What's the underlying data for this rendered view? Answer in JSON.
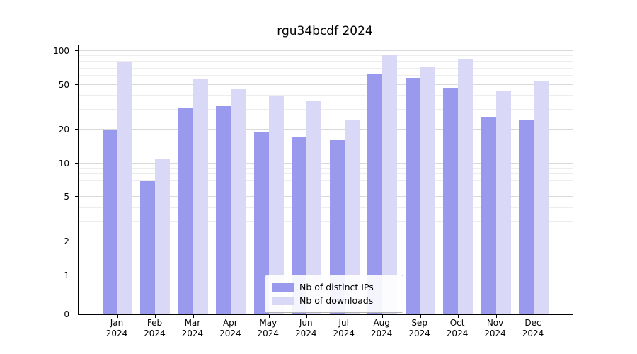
{
  "title": "rgu34bcdf 2024",
  "chart_data": {
    "type": "bar",
    "scale": "symlog",
    "title": "rgu34bcdf 2024",
    "xlabel": "",
    "ylabel": "",
    "categories": [
      "Jan",
      "Feb",
      "Mar",
      "Apr",
      "May",
      "Jun",
      "Jul",
      "Aug",
      "Sep",
      "Oct",
      "Nov",
      "Dec"
    ],
    "year_label": "2024",
    "series": [
      {
        "name": "Nb of distinct IPs",
        "color": "#9999ee",
        "values": [
          20,
          7,
          31,
          32,
          19,
          17,
          16,
          63,
          58,
          47,
          26,
          24
        ]
      },
      {
        "name": "Nb of downloads",
        "color": "#d9d9f7",
        "values": [
          80,
          11,
          57,
          46,
          40,
          36,
          24,
          92,
          72,
          85,
          44,
          54
        ]
      }
    ],
    "yticks": [
      0,
      1,
      2,
      5,
      10,
      20,
      50,
      100
    ],
    "minor_yticks": [
      3,
      4,
      6,
      7,
      8,
      9,
      30,
      40,
      60,
      70,
      80,
      90
    ],
    "ylim": [
      0,
      110
    ],
    "grid": true,
    "legend_position": "lower center"
  }
}
